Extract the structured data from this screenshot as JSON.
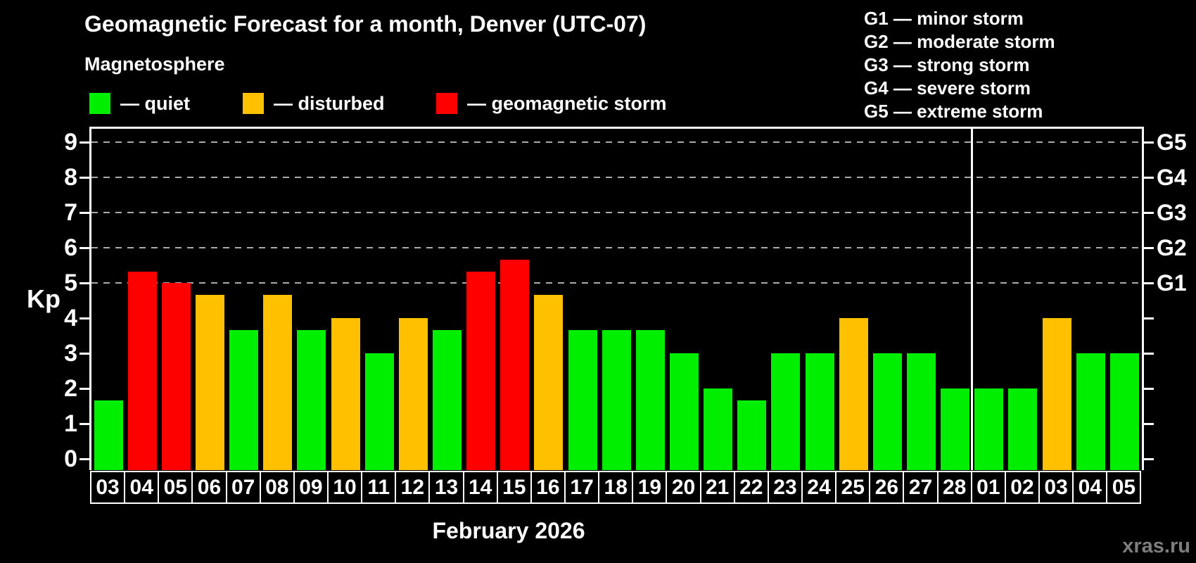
{
  "title": "Geomagnetic Forecast for a month, Denver (UTC-07)",
  "subtitle": "Magnetosphere",
  "legend": {
    "items": [
      {
        "key": "quiet",
        "label": "— quiet",
        "color": "#00ee00",
        "x": 127
      },
      {
        "key": "disturbed",
        "label": "— disturbed",
        "color": "#ffc000",
        "x": 345
      },
      {
        "key": "storm",
        "label": "— geomagnetic storm",
        "color": "#ff0000",
        "x": 620
      }
    ]
  },
  "storm_scale_legend": {
    "items": [
      "G1 — minor storm",
      "G2 — moderate storm",
      "G3 — strong storm",
      "G4 — severe storm",
      "G5 — extreme storm"
    ]
  },
  "watermark": "xras.ru",
  "chart_data": {
    "type": "bar",
    "title": "Geomagnetic Forecast for a month, Denver (UTC-07)",
    "xlabel": "February 2026",
    "ylabel": "Kp",
    "ylim": [
      0,
      9
    ],
    "yticks": [
      0,
      1,
      2,
      3,
      4,
      5,
      6,
      7,
      8,
      9
    ],
    "gridlines_at": [
      5,
      6,
      7,
      8,
      9
    ],
    "grid": "dashed, upper storm zone only",
    "legend_position": "top",
    "right_axis_labels": [
      {
        "kp": 5,
        "label": "G1"
      },
      {
        "kp": 6,
        "label": "G2"
      },
      {
        "kp": 7,
        "label": "G3"
      },
      {
        "kp": 8,
        "label": "G4"
      },
      {
        "kp": 9,
        "label": "G5"
      }
    ],
    "month_divider_after_index": 25,
    "categories": [
      "03",
      "04",
      "05",
      "06",
      "07",
      "08",
      "09",
      "10",
      "11",
      "12",
      "13",
      "14",
      "15",
      "16",
      "17",
      "18",
      "19",
      "20",
      "21",
      "22",
      "23",
      "24",
      "25",
      "26",
      "27",
      "28",
      "01",
      "02",
      "03",
      "04",
      "05"
    ],
    "values": [
      1.67,
      5.33,
      5,
      4.67,
      3.67,
      4.67,
      3.67,
      4,
      3,
      4,
      3.67,
      5.33,
      5.67,
      4.67,
      3.67,
      3.67,
      3.67,
      3,
      2,
      1.67,
      3,
      3,
      4,
      3,
      3,
      2,
      2,
      2,
      4,
      3,
      3
    ],
    "levels": [
      "quiet",
      "storm",
      "storm",
      "disturbed",
      "quiet",
      "disturbed",
      "quiet",
      "disturbed",
      "quiet",
      "disturbed",
      "quiet",
      "storm",
      "storm",
      "disturbed",
      "quiet",
      "quiet",
      "quiet",
      "quiet",
      "quiet",
      "quiet",
      "quiet",
      "quiet",
      "disturbed",
      "quiet",
      "quiet",
      "quiet",
      "quiet",
      "quiet",
      "disturbed",
      "quiet",
      "quiet"
    ]
  }
}
